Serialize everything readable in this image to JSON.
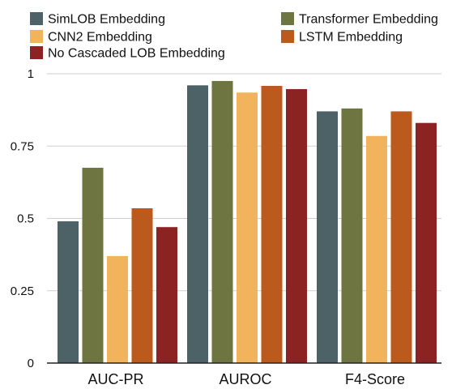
{
  "chart_data": {
    "type": "bar",
    "categories": [
      "AUC-PR",
      "AUROC",
      "F4-Score"
    ],
    "series": [
      {
        "name": "SimLOB Embedding",
        "color": "#4d6267",
        "values": [
          0.49,
          0.96,
          0.87
        ]
      },
      {
        "name": "Transformer Embedding",
        "color": "#6e7541",
        "values": [
          0.675,
          0.975,
          0.88
        ]
      },
      {
        "name": "CNN2 Embedding",
        "color": "#f1b45c",
        "values": [
          0.37,
          0.935,
          0.785
        ]
      },
      {
        "name": "LSTM Embedding",
        "color": "#bc5a1e",
        "values": [
          0.535,
          0.958,
          0.87
        ]
      },
      {
        "name": "No Cascaded LOB Embedding",
        "color": "#8b2322",
        "values": [
          0.47,
          0.947,
          0.83
        ]
      }
    ],
    "yticks": [
      "0",
      "0.25",
      "0.5",
      "0.75",
      "1"
    ],
    "ylim": [
      0,
      1
    ],
    "grid": true,
    "legend_position": "top"
  }
}
